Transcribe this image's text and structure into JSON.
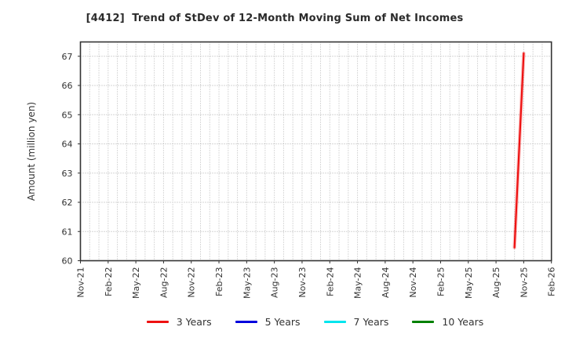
{
  "chart_data": {
    "type": "line",
    "title": "[4412]  Trend of StDev of 12-Month Moving Sum of Net Incomes",
    "xlabel": "",
    "ylabel": "Amount (million yen)",
    "x_tick_labels": [
      "Nov-21",
      "Feb-22",
      "May-22",
      "Aug-22",
      "Nov-22",
      "Feb-23",
      "May-23",
      "Aug-23",
      "Nov-23",
      "Feb-24",
      "May-24",
      "Aug-24",
      "Nov-24",
      "Feb-25",
      "May-25",
      "Aug-25",
      "Nov-25",
      "Feb-26"
    ],
    "x_tick_month_step": 3,
    "x_range_months": 51,
    "y_ticks": [
      60,
      61,
      62,
      63,
      64,
      65,
      66,
      67
    ],
    "ylim": [
      60,
      67.49
    ],
    "grid": {
      "show": true,
      "style": "dotted",
      "x_interval_months": 1,
      "y_interval": 1,
      "color": "#b5b5b5"
    },
    "axis_frame_color": "#333333",
    "tick_label_color": "#333333",
    "legend": {
      "position": "bottom",
      "entries": [
        "3 Years",
        "5 Years",
        "7 Years",
        "10 Years"
      ]
    },
    "series": [
      {
        "name": "3 Years",
        "color": "#ee1111",
        "points": [
          {
            "x": "Oct-25",
            "month_index": 47,
            "y": 60.45
          },
          {
            "x": "Nov-25",
            "month_index": 48,
            "y": 67.1
          }
        ]
      },
      {
        "name": "5 Years",
        "color": "#0000dd",
        "points": []
      },
      {
        "name": "7 Years",
        "color": "#00e5ee",
        "points": []
      },
      {
        "name": "10 Years",
        "color": "#008000",
        "points": []
      }
    ]
  }
}
